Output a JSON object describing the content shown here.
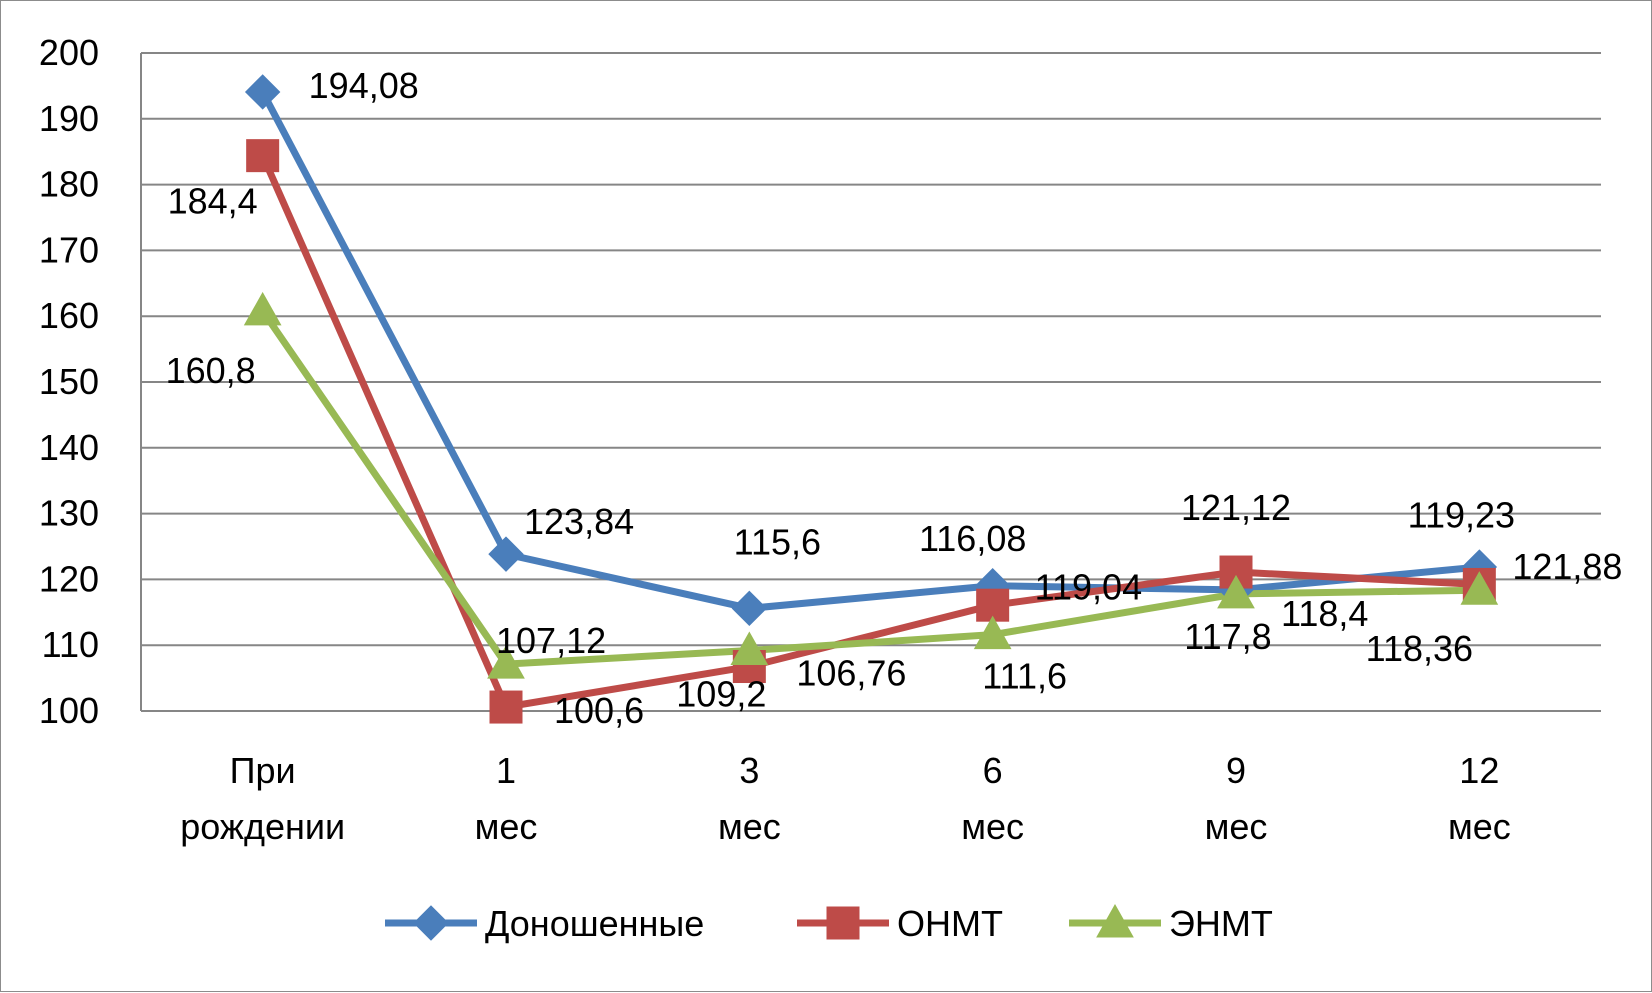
{
  "chart_data": {
    "type": "line",
    "categories": [
      "При рождении",
      "1 мес",
      "3 мес",
      "6 мес",
      "9 мес",
      "12 мес"
    ],
    "series": [
      {
        "name": "Доношенные",
        "color": "#4a7ebb",
        "marker": "diamond",
        "values": [
          194.08,
          123.84,
          115.6,
          119.04,
          118.4,
          121.88
        ]
      },
      {
        "name": "ОНМТ",
        "color": "#be4b48",
        "marker": "square",
        "values": [
          184.4,
          100.6,
          106.76,
          116.08,
          121.12,
          119.23
        ]
      },
      {
        "name": "ЭНМТ",
        "color": "#98b954",
        "marker": "triangle",
        "values": [
          160.8,
          107.12,
          109.2,
          111.6,
          117.8,
          118.36
        ]
      }
    ],
    "data_labels": [
      {
        "series": 0,
        "point": 0,
        "text": "194,08"
      },
      {
        "series": 0,
        "point": 1,
        "text": "123,84"
      },
      {
        "series": 0,
        "point": 2,
        "text": "115,6"
      },
      {
        "series": 0,
        "point": 3,
        "text": "119,04"
      },
      {
        "series": 0,
        "point": 4,
        "text": "118,4"
      },
      {
        "series": 0,
        "point": 5,
        "text": "121,88"
      },
      {
        "series": 1,
        "point": 0,
        "text": "184,4"
      },
      {
        "series": 1,
        "point": 1,
        "text": "100,6"
      },
      {
        "series": 1,
        "point": 2,
        "text": "106,76"
      },
      {
        "series": 1,
        "point": 3,
        "text": "116,08"
      },
      {
        "series": 1,
        "point": 4,
        "text": "121,12"
      },
      {
        "series": 1,
        "point": 5,
        "text": "119,23"
      },
      {
        "series": 2,
        "point": 0,
        "text": "160,8"
      },
      {
        "series": 2,
        "point": 1,
        "text": "107,12"
      },
      {
        "series": 2,
        "point": 2,
        "text": "109,2"
      },
      {
        "series": 2,
        "point": 3,
        "text": "111,6"
      },
      {
        "series": 2,
        "point": 4,
        "text": "117,8"
      },
      {
        "series": 2,
        "point": 5,
        "text": "118,36"
      }
    ],
    "title": "",
    "xlabel": "",
    "ylabel": "",
    "ylim": [
      100,
      200
    ],
    "yticks": [
      200,
      190,
      180,
      170,
      160,
      150,
      140,
      130,
      120,
      110,
      100
    ],
    "grid": true,
    "legend_position": "bottom",
    "gridline_color": "#868686"
  }
}
